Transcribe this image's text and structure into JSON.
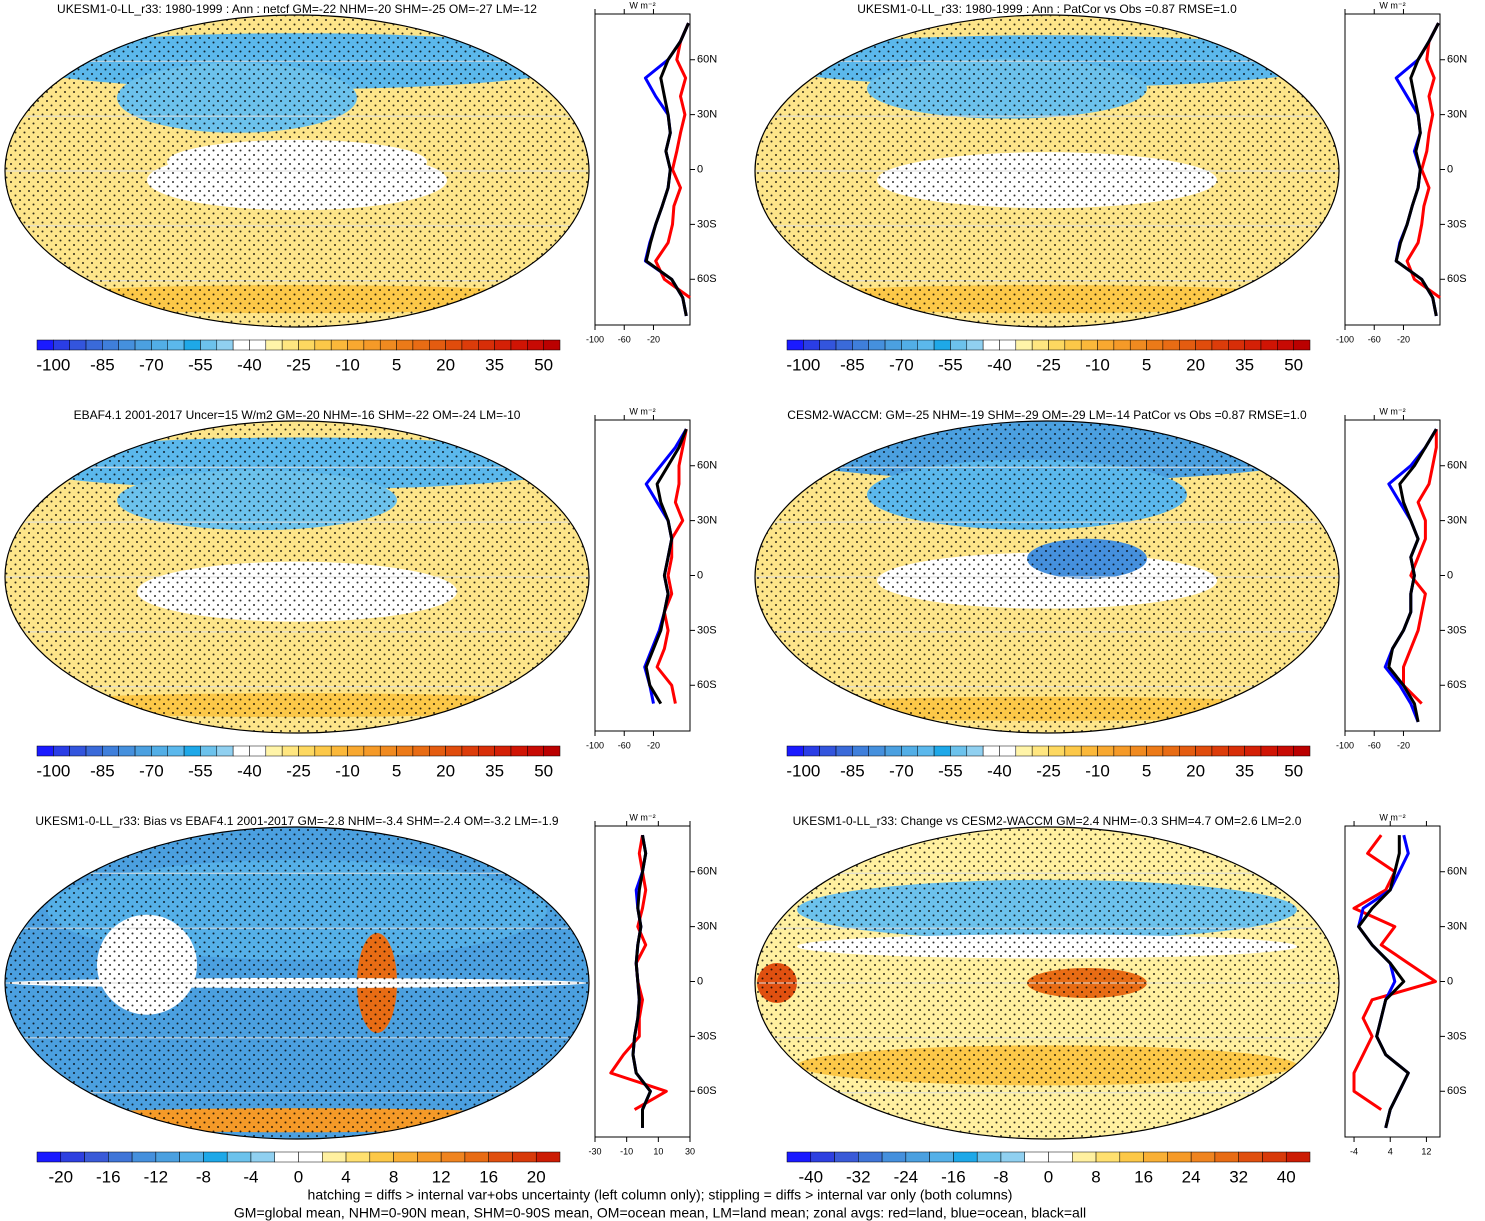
{
  "chart_data": [
    {
      "type": "map",
      "title": "UKESM1-0-LL_r33: 1980-1999 : Ann : netcf GM=-22 NHM=-20 SHM=-25 OM=-27 LM=-12",
      "colorbar": {
        "colors": [
          "#1a1aff",
          "#2a3de6",
          "#3355dd",
          "#3a6ad9",
          "#3f7fdb",
          "#4590dd",
          "#4ba0e0",
          "#52aee6",
          "#5bb8ec",
          "#1ea8e8",
          "#6cc2ec",
          "#90d0f0",
          "#ffffff",
          "#ffffff",
          "#fff4a8",
          "#ffe680",
          "#fdd860",
          "#fcc848",
          "#fbb83a",
          "#f8a830",
          "#f59a28",
          "#f08a20",
          "#ec7a18",
          "#e86c14",
          "#e45c10",
          "#e04c0c",
          "#dc3c0a",
          "#d82e08",
          "#d42006",
          "#d01404",
          "#c80a04",
          "#bb0000"
        ],
        "labels": [
          -100,
          -85,
          -70,
          -55,
          -40,
          -25,
          -10,
          5,
          20,
          35,
          50
        ]
      }
    },
    {
      "type": "line",
      "x_label": "W m⁻²",
      "lat": [
        -80,
        -70,
        -60,
        -50,
        -40,
        -30,
        -20,
        -10,
        0,
        10,
        20,
        30,
        40,
        50,
        60,
        70,
        80
      ],
      "latlim": [
        -85,
        85
      ],
      "latticks": [
        {
          "value": 60,
          "label": "60N"
        },
        {
          "value": 30,
          "label": "30N"
        },
        0,
        {
          "value": -30,
          "label": "30S"
        },
        {
          "value": -60,
          "label": "60S"
        }
      ],
      "xlim": [
        -100,
        30
      ],
      "xticks": [
        -100,
        -60,
        -20
      ],
      "series": [
        {
          "color": "#ff0000",
          "values": [
            null,
            30,
            -5,
            -17,
            0,
            6,
            8,
            17,
            6,
            12,
            17,
            23,
            17,
            24,
            12,
            17,
            28
          ]
        },
        {
          "color": "#0000ff",
          "values": [
            25,
            20,
            5,
            -31,
            -25,
            -17,
            -8,
            0,
            3,
            -3,
            3,
            0,
            -17,
            -31,
            0,
            17,
            28
          ]
        },
        {
          "color": "#000000",
          "values": [
            25,
            20,
            5,
            -30,
            -24,
            -17,
            -8,
            0,
            3,
            -3,
            3,
            0,
            -5,
            -10,
            0,
            17,
            28
          ]
        }
      ]
    },
    {
      "type": "map",
      "title": "UKESM1-0-LL_r33: 1980-1999 : Ann : PatCor vs Obs =0.87 RMSE=1.0",
      "colorbar": {
        "colors": [
          "#1a1aff",
          "#2a3de6",
          "#3355dd",
          "#3a6ad9",
          "#3f7fdb",
          "#4590dd",
          "#4ba0e0",
          "#52aee6",
          "#5bb8ec",
          "#1ea8e8",
          "#6cc2ec",
          "#90d0f0",
          "#ffffff",
          "#ffffff",
          "#fff4a8",
          "#ffe680",
          "#fdd860",
          "#fcc848",
          "#fbb83a",
          "#f8a830",
          "#f59a28",
          "#f08a20",
          "#ec7a18",
          "#e86c14",
          "#e45c10",
          "#e04c0c",
          "#dc3c0a",
          "#d82e08",
          "#d42006",
          "#d01404",
          "#c80a04",
          "#bb0000"
        ],
        "labels": [
          -100,
          -85,
          -70,
          -55,
          -40,
          -25,
          -10,
          5,
          20,
          35,
          50
        ]
      }
    },
    {
      "type": "line",
      "x_label": "W m⁻²",
      "lat": [
        -80,
        -70,
        -60,
        -50,
        -40,
        -30,
        -20,
        -10,
        0,
        10,
        20,
        30,
        40,
        50,
        60,
        70,
        80
      ],
      "latlim": [
        -85,
        85
      ],
      "latticks": [
        {
          "value": 60,
          "label": "60N"
        },
        {
          "value": 30,
          "label": "30N"
        },
        0,
        {
          "value": -30,
          "label": "30S"
        },
        {
          "value": -60,
          "label": "60S"
        }
      ],
      "xlim": [
        -100,
        30
      ],
      "xticks": [
        -100,
        -60,
        -20
      ],
      "series": [
        {
          "color": "#ff0000",
          "values": [
            null,
            30,
            -5,
            -15,
            0,
            5,
            8,
            15,
            5,
            12,
            15,
            20,
            15,
            22,
            12,
            15,
            28
          ]
        },
        {
          "color": "#0000ff",
          "values": [
            25,
            20,
            5,
            -30,
            -25,
            -15,
            -8,
            0,
            3,
            -5,
            3,
            0,
            -15,
            -30,
            0,
            15,
            28
          ]
        },
        {
          "color": "#000000",
          "values": [
            25,
            20,
            5,
            -30,
            -24,
            -15,
            -8,
            0,
            3,
            -3,
            3,
            0,
            -5,
            -10,
            0,
            15,
            28
          ]
        }
      ]
    },
    {
      "type": "map",
      "title": "EBAF4.1 2001-2017 Uncer=15 W/m2 GM=-20 NHM=-16 SHM=-22 OM=-24 LM=-10",
      "colorbar": {
        "colors": [
          "#1a1aff",
          "#2a3de6",
          "#3355dd",
          "#3a6ad9",
          "#3f7fdb",
          "#4590dd",
          "#4ba0e0",
          "#52aee6",
          "#5bb8ec",
          "#1ea8e8",
          "#6cc2ec",
          "#90d0f0",
          "#ffffff",
          "#ffffff",
          "#fff4a8",
          "#ffe680",
          "#fdd860",
          "#fcc848",
          "#fbb83a",
          "#f8a830",
          "#f59a28",
          "#f08a20",
          "#ec7a18",
          "#e86c14",
          "#e45c10",
          "#e04c0c",
          "#dc3c0a",
          "#d82e08",
          "#d42006",
          "#d01404",
          "#c80a04",
          "#bb0000"
        ],
        "labels": [
          -100,
          -85,
          -70,
          -55,
          -40,
          -25,
          -10,
          5,
          20,
          35,
          50
        ]
      }
    },
    {
      "type": "line",
      "x_label": "W m⁻²",
      "lat": [
        -80,
        -70,
        -60,
        -50,
        -40,
        -30,
        -20,
        -10,
        0,
        10,
        20,
        30,
        40,
        50,
        60,
        70,
        80
      ],
      "latlim": [
        -85,
        85
      ],
      "latticks": [
        {
          "value": 60,
          "label": "60N"
        },
        {
          "value": 30,
          "label": "30N"
        },
        0,
        {
          "value": -30,
          "label": "30S"
        },
        {
          "value": -60,
          "label": "60S"
        }
      ],
      "xlim": [
        -100,
        30
      ],
      "xticks": [
        -100,
        -60,
        -20
      ],
      "series": [
        {
          "color": "#ff0000",
          "values": [
            null,
            10,
            5,
            -15,
            -5,
            0,
            -5,
            5,
            0,
            5,
            5,
            20,
            10,
            15,
            15,
            20,
            25
          ]
        },
        {
          "color": "#0000ff",
          "values": [
            null,
            -20,
            -25,
            -32,
            -22,
            -12,
            -5,
            0,
            -5,
            0,
            5,
            0,
            -15,
            -30,
            -10,
            10,
            25
          ]
        },
        {
          "color": "#000000",
          "values": [
            null,
            -10,
            -25,
            -30,
            -20,
            -10,
            -5,
            0,
            -5,
            0,
            5,
            0,
            -10,
            -15,
            0,
            15,
            25
          ]
        }
      ]
    },
    {
      "type": "map",
      "title": "CESM2-WACCM: GM=-25 NHM=-19 SHM=-29 OM=-29 LM=-14 PatCor vs Obs =0.87 RMSE=1.0",
      "colorbar": {
        "colors": [
          "#1a1aff",
          "#2a3de6",
          "#3355dd",
          "#3a6ad9",
          "#3f7fdb",
          "#4590dd",
          "#4ba0e0",
          "#52aee6",
          "#5bb8ec",
          "#1ea8e8",
          "#6cc2ec",
          "#90d0f0",
          "#ffffff",
          "#ffffff",
          "#fff4a8",
          "#ffe680",
          "#fdd860",
          "#fcc848",
          "#fbb83a",
          "#f8a830",
          "#f59a28",
          "#f08a20",
          "#ec7a18",
          "#e86c14",
          "#e45c10",
          "#e04c0c",
          "#dc3c0a",
          "#d82e08",
          "#d42006",
          "#d01404",
          "#c80a04",
          "#bb0000"
        ],
        "labels": [
          -100,
          -85,
          -70,
          -55,
          -40,
          -25,
          -10,
          5,
          20,
          35,
          50
        ]
      }
    },
    {
      "type": "line",
      "x_label": "W m⁻²",
      "lat": [
        -80,
        -70,
        -60,
        -50,
        -40,
        -30,
        -20,
        -10,
        0,
        10,
        20,
        30,
        40,
        50,
        60,
        70,
        80
      ],
      "latlim": [
        -85,
        85
      ],
      "latticks": [
        {
          "value": 60,
          "label": "60N"
        },
        {
          "value": 30,
          "label": "30N"
        },
        0,
        {
          "value": -30,
          "label": "30S"
        },
        {
          "value": -60,
          "label": "60S"
        }
      ],
      "xlim": [
        -100,
        30
      ],
      "xticks": [
        -100,
        -60,
        -20
      ],
      "series": [
        {
          "color": "#ff0000",
          "values": [
            null,
            5,
            -20,
            -20,
            -10,
            0,
            5,
            10,
            -10,
            0,
            10,
            10,
            0,
            15,
            20,
            25,
            25
          ]
        },
        {
          "color": "#0000ff",
          "values": [
            0,
            -10,
            -25,
            -45,
            -35,
            -20,
            -10,
            -10,
            -5,
            -10,
            0,
            -10,
            -25,
            -40,
            -10,
            10,
            25
          ]
        },
        {
          "color": "#000000",
          "values": [
            0,
            -5,
            -20,
            -40,
            -35,
            -20,
            -10,
            -10,
            -5,
            -10,
            0,
            -10,
            -20,
            -25,
            -5,
            10,
            25
          ]
        }
      ]
    },
    {
      "type": "map",
      "title": "UKESM1-0-LL_r33: Bias vs EBAF4.1 2001-2017 GM=-2.8 NHM=-3.4 SHM=-2.4 OM=-3.2 LM=-1.9",
      "colorbar": {
        "colors": [
          "#1a1aff",
          "#2e40e0",
          "#3a5ad8",
          "#4075d8",
          "#4590dd",
          "#4ba0e0",
          "#55b0e8",
          "#1ea8e8",
          "#6cc2ec",
          "#90d0f0",
          "#ffffff",
          "#ffffff",
          "#fff0a0",
          "#ffe070",
          "#fcc848",
          "#f9b036",
          "#f59a28",
          "#ef8420",
          "#e86c14",
          "#e05010",
          "#d83a0a",
          "#cc1c04"
        ],
        "labels": [
          -20,
          -16,
          -12,
          -8,
          -4,
          0,
          4,
          8,
          12,
          16,
          20
        ]
      }
    },
    {
      "type": "line",
      "x_label": "W m⁻²",
      "lat": [
        -80,
        -70,
        -60,
        -50,
        -40,
        -30,
        -20,
        -10,
        0,
        10,
        20,
        30,
        40,
        50,
        60,
        70,
        80
      ],
      "latlim": [
        -85,
        85
      ],
      "latticks": [
        {
          "value": 60,
          "label": "60N"
        },
        {
          "value": 30,
          "label": "30N"
        },
        0,
        {
          "value": -30,
          "label": "30S"
        },
        {
          "value": -60,
          "label": "60S"
        }
      ],
      "xlim": [
        -30,
        30
      ],
      "xticks": [
        -30,
        -10,
        10,
        30
      ],
      "series": [
        {
          "color": "#ff0000",
          "values": [
            null,
            -5,
            15,
            -20,
            -12,
            -2,
            -2,
            0,
            -3,
            -4,
            2,
            -3,
            0,
            2,
            0,
            -2,
            0
          ]
        },
        {
          "color": "#0000ff",
          "values": [
            0,
            0,
            5,
            -4,
            -6,
            -5,
            -3,
            -2,
            -3,
            -4,
            -3,
            -1,
            -3,
            -4,
            0,
            2,
            0
          ]
        },
        {
          "color": "#000000",
          "values": [
            0,
            0,
            5,
            -4,
            -6,
            -5,
            -3,
            -2,
            -3,
            -4,
            -3,
            -1,
            -3,
            -2,
            0,
            2,
            0
          ]
        }
      ]
    },
    {
      "type": "map",
      "title": "UKESM1-0-LL_r33: Change vs CESM2-WACCM GM=2.4 NHM=-0.3 SHM=4.7 OM=2.6 LM=2.0",
      "colorbar": {
        "colors": [
          "#1a1aff",
          "#2e40e0",
          "#3a5ad8",
          "#4075d8",
          "#4590dd",
          "#4ba0e0",
          "#55b0e8",
          "#1ea8e8",
          "#6cc2ec",
          "#90d0f0",
          "#ffffff",
          "#ffffff",
          "#fff0a0",
          "#ffe070",
          "#fcc848",
          "#f9b036",
          "#f59a28",
          "#ef8420",
          "#e86c14",
          "#e05010",
          "#d83a0a",
          "#cc1c04"
        ],
        "labels": [
          -40,
          -32,
          -24,
          -16,
          -8,
          0,
          8,
          16,
          24,
          32,
          40
        ]
      }
    },
    {
      "type": "line",
      "x_label": "W m⁻²",
      "lat": [
        -80,
        -70,
        -60,
        -50,
        -40,
        -30,
        -20,
        -10,
        0,
        10,
        20,
        30,
        40,
        50,
        60,
        70,
        80
      ],
      "latlim": [
        -85,
        85
      ],
      "latticks": [
        {
          "value": 60,
          "label": "60N"
        },
        {
          "value": 30,
          "label": "30N"
        },
        0,
        {
          "value": -30,
          "label": "30S"
        },
        {
          "value": -60,
          "label": "60S"
        }
      ],
      "xlim": [
        -6,
        15
      ],
      "xticks": [
        -4,
        4,
        12
      ],
      "series": [
        {
          "color": "#ff0000",
          "values": [
            null,
            2,
            -4,
            -4,
            -2,
            0,
            -2,
            0,
            14,
            8,
            2,
            5,
            -4,
            3,
            5,
            -1,
            2
          ]
        },
        {
          "color": "#0000ff",
          "values": [
            3,
            4,
            6,
            8,
            3,
            1,
            2,
            3,
            5,
            4,
            0,
            -3,
            -2,
            4,
            6,
            8,
            7
          ]
        },
        {
          "color": "#000000",
          "values": [
            3,
            4,
            6,
            8,
            3,
            1,
            2,
            3,
            7,
            4,
            0,
            -3,
            0,
            4,
            5,
            6,
            6
          ]
        }
      ]
    }
  ],
  "notes": [
    "hatching = diffs > internal var+obs uncertainty (left column only); stippling = diffs > internal var only (both columns)",
    "GM=global mean, NHM=0-90N mean, SHM=0-90S mean, OM=ocean mean, LM=land mean; zonal avgs: red=land, blue=ocean, black=all"
  ]
}
